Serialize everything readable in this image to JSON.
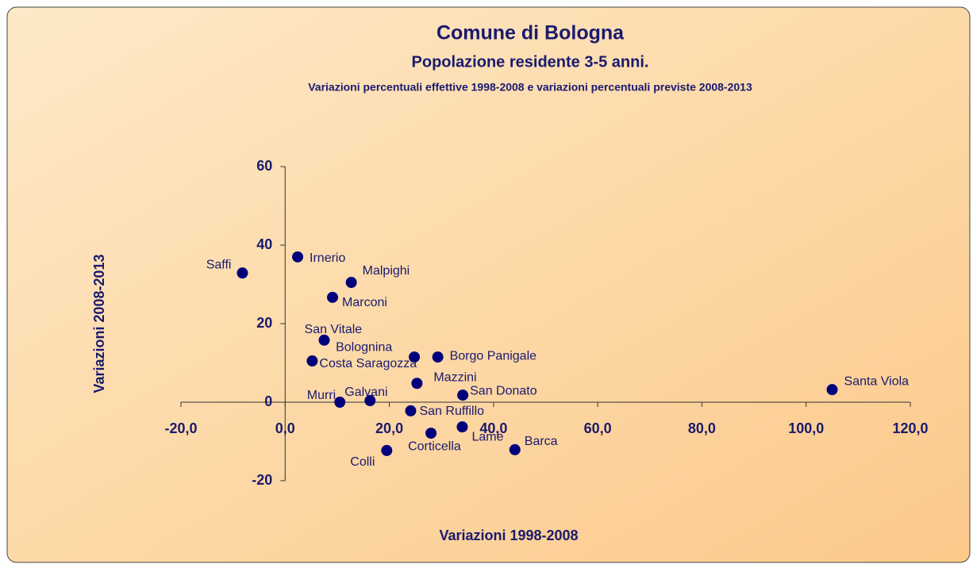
{
  "chart_data": {
    "type": "scatter",
    "title": "Comune di Bologna",
    "subtitle": "Popolazione residente 3-5 anni.",
    "description": "Variazioni percentuali effettive 1998-2008 e variazioni percentuali previste 2008-2013",
    "x_label": "Variazioni 1998-2008",
    "y_label": "Variazioni 2008-2013",
    "color": "#00007a",
    "labels": [
      "Saffi",
      "Irnerio",
      "Malpighi",
      "Marconi",
      "San Vitale",
      "Bolognina",
      "Borgo Panigale",
      "Costa Saragozza",
      "Mazzini",
      "San Donato",
      "Santa Viola",
      "Murri",
      "Galvani",
      "San Ruffillo",
      "Lame",
      "Corticella",
      "Barca",
      "Colli"
    ],
    "x": [
      -8.2,
      2.4,
      12.7,
      9.1,
      7.5,
      24.8,
      29.3,
      5.2,
      25.3,
      34.1,
      105.0,
      10.5,
      16.3,
      24.1,
      34.0,
      28.0,
      44.1,
      19.5
    ],
    "values": [
      32.9,
      37.0,
      30.5,
      26.7,
      15.8,
      11.5,
      11.5,
      10.5,
      4.8,
      1.8,
      3.2,
      0,
      0.4,
      -2.2,
      -6.3,
      -7.9,
      -12.1,
      -12.3
    ],
    "xlim": [
      -20,
      120
    ],
    "xticks": [
      {
        "value": -20,
        "label": "-20,0"
      },
      {
        "value": 0,
        "label": "0,0"
      },
      {
        "value": 20,
        "label": "20,0"
      },
      {
        "value": 40,
        "label": "40,0"
      },
      {
        "value": 60,
        "label": "60,0"
      },
      {
        "value": 80,
        "label": "80,0"
      },
      {
        "value": 100,
        "label": "100,0"
      },
      {
        "value": 120,
        "label": "120,0"
      }
    ],
    "ylim": [
      -20,
      60
    ],
    "yticks": [
      -20,
      0,
      20,
      40,
      60
    ]
  }
}
